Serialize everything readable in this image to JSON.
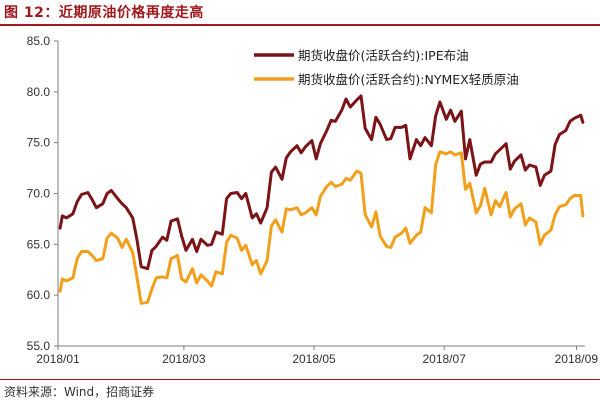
{
  "header": {
    "title": "图 12：近期原油价格再度走高"
  },
  "footer": {
    "source": "资料来源：Wind，招商证券"
  },
  "chart_data": {
    "type": "line",
    "title": "",
    "xlabel": "",
    "ylabel": "",
    "ylim": [
      55.0,
      85.0
    ],
    "yticks": [
      "55.0",
      "60.0",
      "65.0",
      "70.0",
      "75.0",
      "80.0",
      "85.0"
    ],
    "xticks": [
      "2018/01",
      "2018/03",
      "2018/05",
      "2018/07",
      "2018/09"
    ],
    "xlim": [
      "2018-01-01",
      "2018-09-05"
    ],
    "grid": false,
    "legend_position": "top-right",
    "series": [
      {
        "name": "期货收盘价(活跃合约):IPE布油",
        "color": "#7b1416",
        "points": [
          [
            "2018-01-02",
            66.6
          ],
          [
            "2018-01-03",
            67.8
          ],
          [
            "2018-01-05",
            67.6
          ],
          [
            "2018-01-08",
            68.0
          ],
          [
            "2018-01-10",
            69.2
          ],
          [
            "2018-01-12",
            69.9
          ],
          [
            "2018-01-15",
            70.1
          ],
          [
            "2018-01-17",
            69.4
          ],
          [
            "2018-01-19",
            68.6
          ],
          [
            "2018-01-22",
            69.0
          ],
          [
            "2018-01-24",
            70.0
          ],
          [
            "2018-01-26",
            70.3
          ],
          [
            "2018-01-29",
            69.5
          ],
          [
            "2018-01-31",
            69.0
          ],
          [
            "2018-02-02",
            68.6
          ],
          [
            "2018-02-05",
            67.6
          ],
          [
            "2018-02-07",
            65.5
          ],
          [
            "2018-02-09",
            62.8
          ],
          [
            "2018-02-12",
            62.6
          ],
          [
            "2018-02-14",
            64.4
          ],
          [
            "2018-02-16",
            64.8
          ],
          [
            "2018-02-19",
            65.7
          ],
          [
            "2018-02-21",
            65.4
          ],
          [
            "2018-02-23",
            67.3
          ],
          [
            "2018-02-26",
            67.5
          ],
          [
            "2018-02-28",
            65.8
          ],
          [
            "2018-03-02",
            64.4
          ],
          [
            "2018-03-05",
            65.5
          ],
          [
            "2018-03-07",
            64.3
          ],
          [
            "2018-03-09",
            65.5
          ],
          [
            "2018-03-12",
            64.9
          ],
          [
            "2018-03-14",
            65.0
          ],
          [
            "2018-03-16",
            66.2
          ],
          [
            "2018-03-19",
            66.0
          ],
          [
            "2018-03-21",
            69.5
          ],
          [
            "2018-03-23",
            70.0
          ],
          [
            "2018-03-26",
            70.1
          ],
          [
            "2018-03-28",
            69.5
          ],
          [
            "2018-03-30",
            70.0
          ],
          [
            "2018-04-02",
            67.6
          ],
          [
            "2018-04-04",
            68.0
          ],
          [
            "2018-04-06",
            67.1
          ],
          [
            "2018-04-09",
            68.6
          ],
          [
            "2018-04-11",
            72.1
          ],
          [
            "2018-04-13",
            72.6
          ],
          [
            "2018-04-16",
            71.4
          ],
          [
            "2018-04-18",
            73.5
          ],
          [
            "2018-04-20",
            74.1
          ],
          [
            "2018-04-23",
            74.7
          ],
          [
            "2018-04-25",
            74.0
          ],
          [
            "2018-04-27",
            74.6
          ],
          [
            "2018-04-30",
            75.2
          ],
          [
            "2018-05-02",
            73.4
          ],
          [
            "2018-05-04",
            74.9
          ],
          [
            "2018-05-07",
            76.2
          ],
          [
            "2018-05-09",
            77.2
          ],
          [
            "2018-05-11",
            77.1
          ],
          [
            "2018-05-14",
            78.2
          ],
          [
            "2018-05-16",
            79.3
          ],
          [
            "2018-05-18",
            78.5
          ],
          [
            "2018-05-21",
            79.2
          ],
          [
            "2018-05-23",
            79.6
          ],
          [
            "2018-05-25",
            76.4
          ],
          [
            "2018-05-28",
            75.3
          ],
          [
            "2018-05-30",
            77.5
          ],
          [
            "2018-06-01",
            76.8
          ],
          [
            "2018-06-04",
            75.3
          ],
          [
            "2018-06-06",
            75.4
          ],
          [
            "2018-06-08",
            76.5
          ],
          [
            "2018-06-11",
            76.5
          ],
          [
            "2018-06-13",
            76.7
          ],
          [
            "2018-06-15",
            73.4
          ],
          [
            "2018-06-18",
            75.3
          ],
          [
            "2018-06-20",
            74.7
          ],
          [
            "2018-06-22",
            75.5
          ],
          [
            "2018-06-25",
            74.7
          ],
          [
            "2018-06-27",
            77.6
          ],
          [
            "2018-06-29",
            79.0
          ],
          [
            "2018-07-02",
            77.3
          ],
          [
            "2018-07-04",
            78.2
          ],
          [
            "2018-07-06",
            77.1
          ],
          [
            "2018-07-09",
            78.1
          ],
          [
            "2018-07-11",
            73.4
          ],
          [
            "2018-07-13",
            75.3
          ],
          [
            "2018-07-16",
            71.8
          ],
          [
            "2018-07-18",
            72.9
          ],
          [
            "2018-07-20",
            73.1
          ],
          [
            "2018-07-23",
            73.1
          ],
          [
            "2018-07-25",
            73.9
          ],
          [
            "2018-07-27",
            74.3
          ],
          [
            "2018-07-30",
            74.9
          ],
          [
            "2018-08-01",
            72.4
          ],
          [
            "2018-08-03",
            73.2
          ],
          [
            "2018-08-06",
            73.8
          ],
          [
            "2018-08-08",
            72.3
          ],
          [
            "2018-08-10",
            72.8
          ],
          [
            "2018-08-13",
            72.6
          ],
          [
            "2018-08-15",
            70.8
          ],
          [
            "2018-08-17",
            71.8
          ],
          [
            "2018-08-20",
            72.2
          ],
          [
            "2018-08-22",
            74.8
          ],
          [
            "2018-08-24",
            75.8
          ],
          [
            "2018-08-27",
            76.2
          ],
          [
            "2018-08-29",
            77.1
          ],
          [
            "2018-08-31",
            77.4
          ],
          [
            "2018-09-03",
            77.7
          ],
          [
            "2018-09-04",
            77.0
          ]
        ]
      },
      {
        "name": "期货收盘价(活跃合约):NYMEX轻质原油",
        "color": "#f2a01c",
        "points": [
          [
            "2018-01-02",
            60.4
          ],
          [
            "2018-01-03",
            61.6
          ],
          [
            "2018-01-05",
            61.4
          ],
          [
            "2018-01-08",
            61.7
          ],
          [
            "2018-01-10",
            63.6
          ],
          [
            "2018-01-12",
            64.3
          ],
          [
            "2018-01-15",
            64.3
          ],
          [
            "2018-01-17",
            63.9
          ],
          [
            "2018-01-19",
            63.4
          ],
          [
            "2018-01-22",
            63.6
          ],
          [
            "2018-01-24",
            65.6
          ],
          [
            "2018-01-26",
            66.1
          ],
          [
            "2018-01-29",
            65.6
          ],
          [
            "2018-01-31",
            64.7
          ],
          [
            "2018-02-02",
            65.5
          ],
          [
            "2018-02-05",
            64.2
          ],
          [
            "2018-02-07",
            61.8
          ],
          [
            "2018-02-09",
            59.2
          ],
          [
            "2018-02-12",
            59.3
          ],
          [
            "2018-02-14",
            60.6
          ],
          [
            "2018-02-16",
            61.7
          ],
          [
            "2018-02-19",
            61.8
          ],
          [
            "2018-02-21",
            61.7
          ],
          [
            "2018-02-23",
            63.6
          ],
          [
            "2018-02-26",
            63.9
          ],
          [
            "2018-02-28",
            61.6
          ],
          [
            "2018-03-02",
            61.3
          ],
          [
            "2018-03-05",
            62.6
          ],
          [
            "2018-03-07",
            61.2
          ],
          [
            "2018-03-09",
            62.0
          ],
          [
            "2018-03-12",
            61.4
          ],
          [
            "2018-03-14",
            60.9
          ],
          [
            "2018-03-16",
            62.3
          ],
          [
            "2018-03-19",
            62.1
          ],
          [
            "2018-03-21",
            65.2
          ],
          [
            "2018-03-23",
            65.9
          ],
          [
            "2018-03-26",
            65.6
          ],
          [
            "2018-03-28",
            64.4
          ],
          [
            "2018-03-30",
            64.9
          ],
          [
            "2018-04-02",
            63.0
          ],
          [
            "2018-04-04",
            63.4
          ],
          [
            "2018-04-06",
            62.1
          ],
          [
            "2018-04-09",
            63.4
          ],
          [
            "2018-04-11",
            66.8
          ],
          [
            "2018-04-13",
            67.4
          ],
          [
            "2018-04-16",
            66.2
          ],
          [
            "2018-04-18",
            68.5
          ],
          [
            "2018-04-20",
            68.4
          ],
          [
            "2018-04-23",
            68.6
          ],
          [
            "2018-04-25",
            67.9
          ],
          [
            "2018-04-27",
            68.1
          ],
          [
            "2018-04-30",
            68.6
          ],
          [
            "2018-05-02",
            67.9
          ],
          [
            "2018-05-04",
            69.7
          ],
          [
            "2018-05-07",
            70.7
          ],
          [
            "2018-05-09",
            71.1
          ],
          [
            "2018-05-11",
            70.7
          ],
          [
            "2018-05-14",
            70.9
          ],
          [
            "2018-05-16",
            71.5
          ],
          [
            "2018-05-18",
            71.3
          ],
          [
            "2018-05-21",
            72.2
          ],
          [
            "2018-05-23",
            72.0
          ],
          [
            "2018-05-25",
            67.9
          ],
          [
            "2018-05-28",
            66.7
          ],
          [
            "2018-05-30",
            68.2
          ],
          [
            "2018-06-01",
            65.8
          ],
          [
            "2018-06-04",
            64.8
          ],
          [
            "2018-06-06",
            64.7
          ],
          [
            "2018-06-08",
            65.7
          ],
          [
            "2018-06-11",
            66.1
          ],
          [
            "2018-06-13",
            66.6
          ],
          [
            "2018-06-15",
            65.1
          ],
          [
            "2018-06-18",
            65.9
          ],
          [
            "2018-06-20",
            66.2
          ],
          [
            "2018-06-22",
            68.6
          ],
          [
            "2018-06-25",
            68.1
          ],
          [
            "2018-06-27",
            72.8
          ],
          [
            "2018-06-29",
            74.1
          ],
          [
            "2018-07-02",
            73.9
          ],
          [
            "2018-07-04",
            74.1
          ],
          [
            "2018-07-06",
            73.8
          ],
          [
            "2018-07-09",
            74.0
          ],
          [
            "2018-07-11",
            70.4
          ],
          [
            "2018-07-13",
            71.0
          ],
          [
            "2018-07-16",
            68.1
          ],
          [
            "2018-07-18",
            68.8
          ],
          [
            "2018-07-20",
            70.5
          ],
          [
            "2018-07-23",
            67.9
          ],
          [
            "2018-07-25",
            69.3
          ],
          [
            "2018-07-27",
            68.7
          ],
          [
            "2018-07-30",
            70.1
          ],
          [
            "2018-08-01",
            67.7
          ],
          [
            "2018-08-03",
            68.5
          ],
          [
            "2018-08-06",
            69.0
          ],
          [
            "2018-08-08",
            66.9
          ],
          [
            "2018-08-10",
            67.6
          ],
          [
            "2018-08-13",
            67.2
          ],
          [
            "2018-08-15",
            65.0
          ],
          [
            "2018-08-17",
            65.9
          ],
          [
            "2018-08-20",
            66.4
          ],
          [
            "2018-08-22",
            67.9
          ],
          [
            "2018-08-24",
            68.7
          ],
          [
            "2018-08-27",
            68.9
          ],
          [
            "2018-08-29",
            69.5
          ],
          [
            "2018-08-31",
            69.8
          ],
          [
            "2018-09-03",
            69.8
          ],
          [
            "2018-09-04",
            67.8
          ]
        ]
      }
    ]
  }
}
